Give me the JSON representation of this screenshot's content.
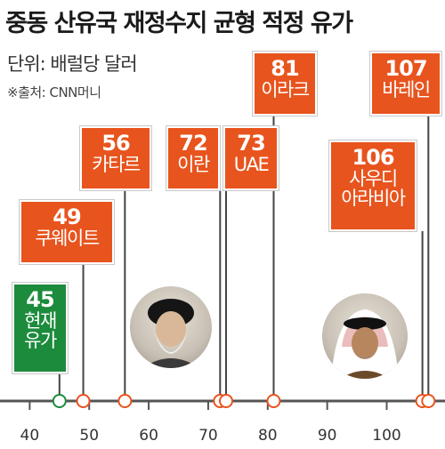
{
  "title": "중동 산유국 재정수지 균형 적정 유가",
  "unit": "단위: 배럴당 달러",
  "source": "※출처: CNN머니",
  "colors": {
    "orange": "#e8541e",
    "green": "#1c8b3c",
    "axis": "#555555"
  },
  "chart_data": {
    "type": "scatter",
    "xlim": [
      38,
      108
    ],
    "x_ticks": [
      40,
      50,
      60,
      70,
      80,
      90,
      100
    ],
    "points": [
      {
        "value": 45,
        "label_lines": [
          "현재",
          "유가"
        ],
        "highlight": true
      },
      {
        "value": 49,
        "label_lines": [
          "쿠웨이트"
        ]
      },
      {
        "value": 56,
        "label_lines": [
          "카타르"
        ]
      },
      {
        "value": 72,
        "label_lines": [
          "이란"
        ]
      },
      {
        "value": 73,
        "label_lines": [
          "UAE"
        ]
      },
      {
        "value": 81,
        "label_lines": [
          "이라크"
        ]
      },
      {
        "value": 106,
        "label_lines": [
          "사우디",
          "아라비아"
        ]
      },
      {
        "value": 107,
        "label_lines": [
          "바레인"
        ]
      }
    ]
  },
  "portraits": [
    {
      "name": "iran-leader-portrait-icon"
    },
    {
      "name": "saudi-king-portrait-icon"
    }
  ]
}
